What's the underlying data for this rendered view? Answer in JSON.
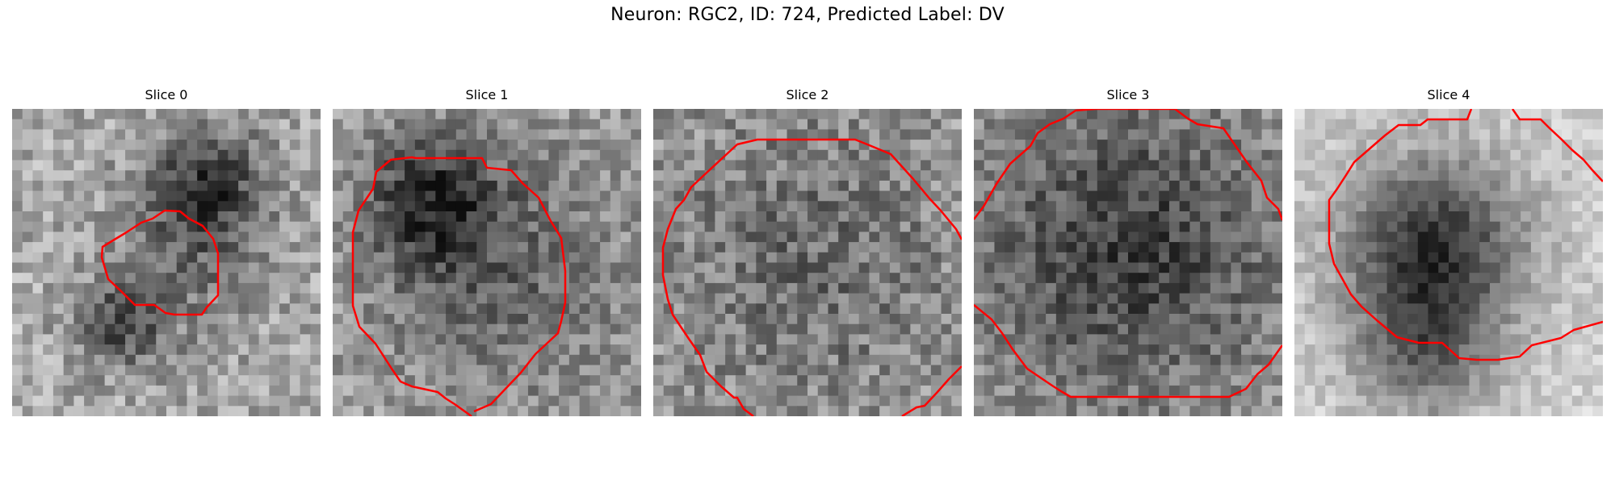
{
  "figure": {
    "title": "Neuron: RGC2, ID: 724, Predicted Label: DV"
  },
  "panels": [
    {
      "title": "Slice 0",
      "contour_color": "#ff0000"
    },
    {
      "title": "Slice 1",
      "contour_color": "#ff0000"
    },
    {
      "title": "Slice 2",
      "contour_color": "#ff0000"
    },
    {
      "title": "Slice 3",
      "contour_color": "#ff0000"
    },
    {
      "title": "Slice 4",
      "contour_color": "#ff0000"
    }
  ]
}
